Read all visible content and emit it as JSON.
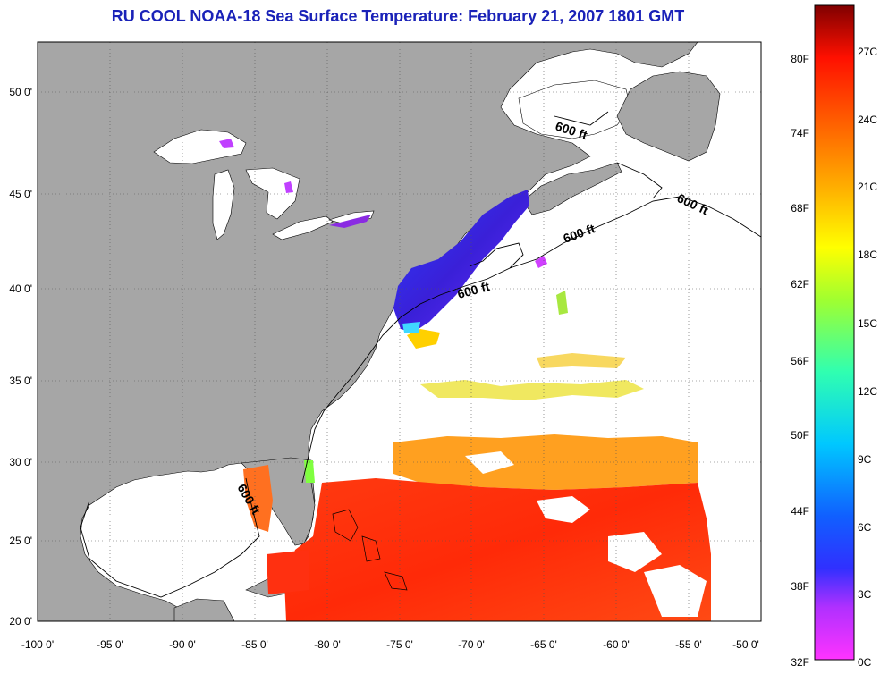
{
  "title": "RU COOL  NOAA-18  Sea Surface Temperature:  February 21, 2007 1801 GMT",
  "map": {
    "lon_range": [
      -100,
      -50
    ],
    "lat_range": [
      20,
      52.5
    ],
    "lon_ticks": [
      "-100 0'",
      "-95 0'",
      "-90 0'",
      "-85 0'",
      "-80 0'",
      "-75 0'",
      "-70 0'",
      "-65 0'",
      "-60 0'",
      "-55 0'",
      "-50 0'"
    ],
    "lat_ticks": [
      "20 0'",
      "25 0'",
      "30 0'",
      "35 0'",
      "40 0'",
      "45 0'",
      "50 0'"
    ],
    "grid": true,
    "contour_labels": [
      "600 ft",
      "600 ft",
      "600 ft",
      "600 ft",
      "600 ft"
    ],
    "colors": {
      "land": "#a6a6a6",
      "ocean_nodata": "#ffffff",
      "grid": "#555555"
    }
  },
  "colorbar": {
    "fahrenheit_labels": [
      "80F",
      "74F",
      "68F",
      "62F",
      "56F",
      "50F",
      "44F",
      "38F",
      "32F"
    ],
    "celsius_labels": [
      "27C",
      "24C",
      "21C",
      "18C",
      "15C",
      "12C",
      "9C",
      "6C",
      "3C",
      "0C"
    ],
    "range_c": [
      0,
      29
    ]
  }
}
